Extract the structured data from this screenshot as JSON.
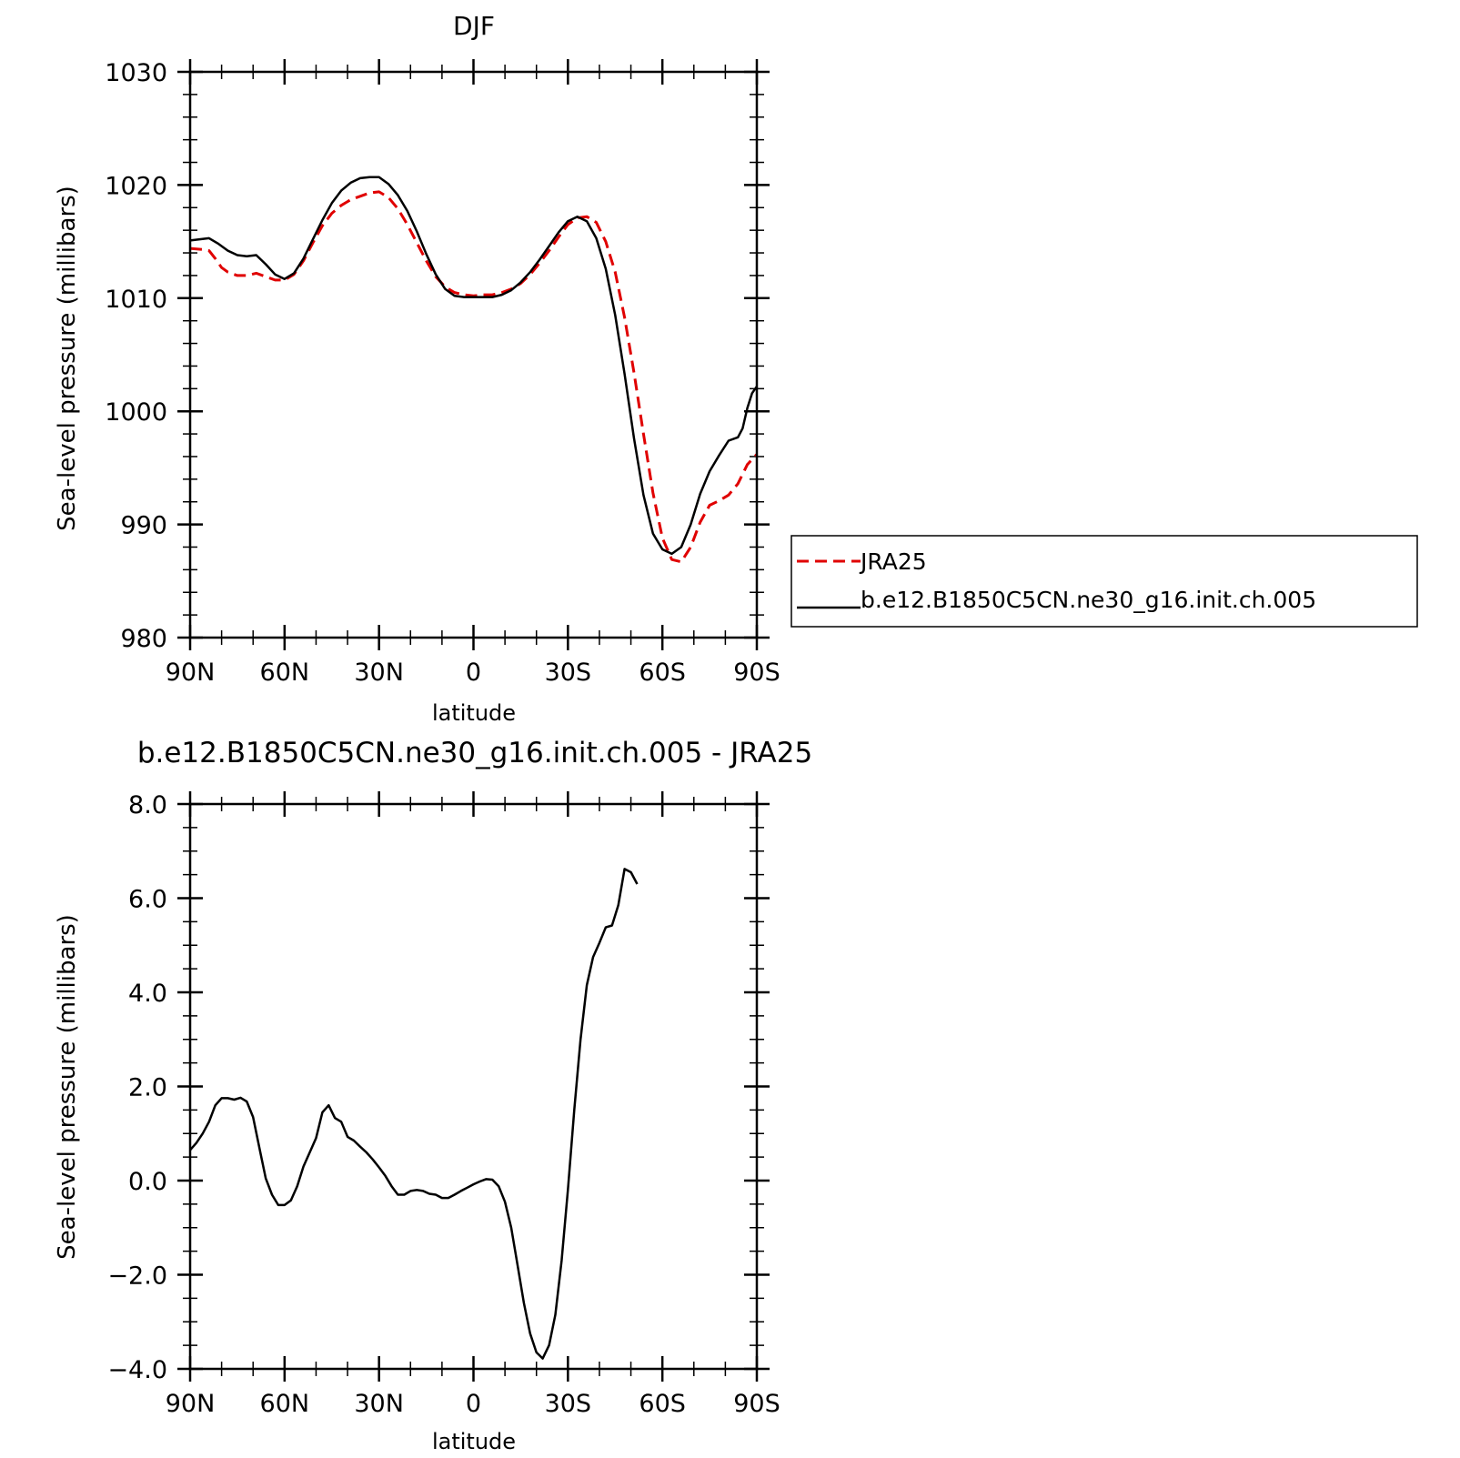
{
  "chart_data": [
    {
      "type": "line",
      "title": "DJF",
      "xlabel": "latitude",
      "ylabel": "Sea-level pressure (millibars)",
      "xlim": [
        90,
        -90
      ],
      "ylim": [
        980,
        1030
      ],
      "x_ticks": [
        90,
        60,
        30,
        0,
        -30,
        -60,
        -90
      ],
      "x_tick_labels": [
        "90N",
        "60N",
        "30N",
        "0",
        "30S",
        "60S",
        "90S"
      ],
      "y_ticks": [
        980,
        990,
        1000,
        1010,
        1020,
        1030
      ],
      "y_tick_labels": [
        "980",
        "990",
        "1000",
        "1010",
        "1020",
        "1030"
      ],
      "grid": false,
      "legend_position": "right",
      "series": [
        {
          "name": "JRA25",
          "color": "#e00000",
          "style": "dashed",
          "points": [
            [
              90,
              1014.4
            ],
            [
              86,
              1014.3
            ],
            [
              84,
              1014.2
            ],
            [
              82,
              1013.5
            ],
            [
              80,
              1012.7
            ],
            [
              78,
              1012.3
            ],
            [
              75,
              1012.0
            ],
            [
              72,
              1012.0
            ],
            [
              69,
              1012.2
            ],
            [
              66,
              1011.9
            ],
            [
              63,
              1011.6
            ],
            [
              60,
              1011.6
            ],
            [
              57,
              1012.1
            ],
            [
              54,
              1013.3
            ],
            [
              51,
              1014.9
            ],
            [
              48,
              1016.4
            ],
            [
              45,
              1017.5
            ],
            [
              42,
              1018.2
            ],
            [
              39,
              1018.7
            ],
            [
              36,
              1019.0
            ],
            [
              33,
              1019.3
            ],
            [
              30,
              1019.4
            ],
            [
              27,
              1018.9
            ],
            [
              24,
              1017.9
            ],
            [
              21,
              1016.5
            ],
            [
              18,
              1014.9
            ],
            [
              15,
              1013.3
            ],
            [
              12,
              1011.9
            ],
            [
              9,
              1011.0
            ],
            [
              6,
              1010.5
            ],
            [
              3,
              1010.3
            ],
            [
              0,
              1010.2
            ],
            [
              -3,
              1010.3
            ],
            [
              -6,
              1010.3
            ],
            [
              -9,
              1010.5
            ],
            [
              -12,
              1010.8
            ],
            [
              -15,
              1011.3
            ],
            [
              -18,
              1012.1
            ],
            [
              -21,
              1013.1
            ],
            [
              -24,
              1014.2
            ],
            [
              -27,
              1015.4
            ],
            [
              -30,
              1016.5
            ],
            [
              -33,
              1017.1
            ],
            [
              -36,
              1017.2
            ],
            [
              -39,
              1016.7
            ],
            [
              -42,
              1015.0
            ],
            [
              -45,
              1012.3
            ],
            [
              -48,
              1008.3
            ],
            [
              -51,
              1003.4
            ],
            [
              -54,
              998.0
            ],
            [
              -57,
              992.8
            ],
            [
              -60,
              988.8
            ],
            [
              -63,
              986.9
            ],
            [
              -66,
              986.7
            ],
            [
              -69,
              988.0
            ],
            [
              -72,
              990.2
            ],
            [
              -75,
              991.7
            ],
            [
              -78,
              992.1
            ],
            [
              -81,
              992.6
            ],
            [
              -84,
              993.6
            ],
            [
              -87,
              995.3
            ],
            [
              -90,
              996.2
            ]
          ]
        },
        {
          "name": "b.e12.B1850C5CN.ne30_g16.init.ch.005",
          "color": "#000000",
          "style": "solid",
          "points": [
            [
              90,
              1015.1
            ],
            [
              87,
              1015.2
            ],
            [
              84,
              1015.3
            ],
            [
              81,
              1014.8
            ],
            [
              78,
              1014.2
            ],
            [
              75,
              1013.8
            ],
            [
              72,
              1013.7
            ],
            [
              69,
              1013.8
            ],
            [
              66,
              1013.0
            ],
            [
              63,
              1012.1
            ],
            [
              60,
              1011.7
            ],
            [
              57,
              1012.2
            ],
            [
              54,
              1013.5
            ],
            [
              51,
              1015.2
            ],
            [
              48,
              1016.9
            ],
            [
              45,
              1018.4
            ],
            [
              42,
              1019.5
            ],
            [
              39,
              1020.2
            ],
            [
              36,
              1020.6
            ],
            [
              33,
              1020.7
            ],
            [
              30,
              1020.7
            ],
            [
              27,
              1020.1
            ],
            [
              24,
              1019.1
            ],
            [
              21,
              1017.7
            ],
            [
              18,
              1015.9
            ],
            [
              15,
              1013.9
            ],
            [
              12,
              1012.1
            ],
            [
              9,
              1010.8
            ],
            [
              6,
              1010.2
            ],
            [
              3,
              1010.1
            ],
            [
              0,
              1010.1
            ],
            [
              -3,
              1010.1
            ],
            [
              -6,
              1010.1
            ],
            [
              -9,
              1010.3
            ],
            [
              -12,
              1010.7
            ],
            [
              -15,
              1011.4
            ],
            [
              -18,
              1012.3
            ],
            [
              -21,
              1013.4
            ],
            [
              -24,
              1014.6
            ],
            [
              -27,
              1015.8
            ],
            [
              -30,
              1016.8
            ],
            [
              -33,
              1017.2
            ],
            [
              -36,
              1016.8
            ],
            [
              -39,
              1015.3
            ],
            [
              -42,
              1012.6
            ],
            [
              -45,
              1008.5
            ],
            [
              -48,
              1003.3
            ],
            [
              -51,
              997.6
            ],
            [
              -54,
              992.6
            ],
            [
              -57,
              989.2
            ],
            [
              -60,
              987.8
            ],
            [
              -63,
              987.4
            ],
            [
              -66,
              988.0
            ],
            [
              -69,
              990.0
            ],
            [
              -72,
              992.7
            ],
            [
              -75,
              994.7
            ],
            [
              -78,
              996.1
            ],
            [
              -81,
              997.4
            ],
            [
              -84,
              997.7
            ],
            [
              -85.5,
              998.5
            ],
            [
              -87,
              1000.3
            ],
            [
              -88.5,
              1001.6
            ],
            [
              -90,
              1002.2
            ]
          ]
        }
      ]
    },
    {
      "type": "line",
      "title": "b.e12.B1850C5CN.ne30_g16.init.ch.005 - JRA25",
      "xlabel": "latitude",
      "ylabel": "Sea-level pressure (millibars)",
      "xlim": [
        90,
        -90
      ],
      "ylim": [
        -4.0,
        8.0
      ],
      "x_ticks": [
        90,
        60,
        30,
        0,
        -30,
        -60,
        -90
      ],
      "x_tick_labels": [
        "90N",
        "60N",
        "30N",
        "0",
        "30S",
        "60S",
        "90S"
      ],
      "y_ticks": [
        -4,
        -2,
        0,
        2,
        4,
        6,
        8
      ],
      "y_tick_labels": [
        "-4.0",
        "-2.0",
        "0.0",
        "2.0",
        "4.0",
        "6.0",
        "8.0"
      ],
      "grid": false,
      "series": [
        {
          "color": "#000000",
          "style": "solid",
          "points": [
            [
              90,
              0.65
            ],
            [
              88,
              0.8
            ],
            [
              86,
              1.0
            ],
            [
              84,
              1.25
            ],
            [
              82,
              1.6
            ],
            [
              80,
              1.75
            ],
            [
              78,
              1.75
            ],
            [
              76,
              1.72
            ],
            [
              74,
              1.76
            ],
            [
              72,
              1.68
            ],
            [
              70,
              1.35
            ],
            [
              68,
              0.7
            ],
            [
              66,
              0.05
            ],
            [
              64,
              -0.3
            ],
            [
              62,
              -0.52
            ],
            [
              60,
              -0.52
            ],
            [
              58,
              -0.42
            ],
            [
              56,
              -0.12
            ],
            [
              54,
              0.3
            ],
            [
              52,
              0.6
            ],
            [
              50,
              0.9
            ],
            [
              48,
              1.45
            ],
            [
              46,
              1.6
            ],
            [
              44,
              1.33
            ],
            [
              42,
              1.25
            ],
            [
              40,
              0.93
            ],
            [
              38,
              0.85
            ],
            [
              36,
              0.72
            ],
            [
              34,
              0.6
            ],
            [
              32,
              0.45
            ],
            [
              30,
              0.28
            ],
            [
              28,
              0.1
            ],
            [
              26,
              -0.12
            ],
            [
              24,
              -0.3
            ],
            [
              22,
              -0.3
            ],
            [
              20,
              -0.22
            ],
            [
              18,
              -0.2
            ],
            [
              16,
              -0.22
            ],
            [
              14,
              -0.28
            ],
            [
              12,
              -0.3
            ],
            [
              10,
              -0.37
            ],
            [
              8,
              -0.37
            ],
            [
              6,
              -0.3
            ],
            [
              4,
              -0.22
            ],
            [
              2,
              -0.15
            ],
            [
              0,
              -0.08
            ],
            [
              -2,
              -0.02
            ],
            [
              -4,
              0.03
            ],
            [
              -6,
              0.02
            ],
            [
              -8,
              -0.12
            ],
            [
              -10,
              -0.45
            ],
            [
              -12,
              -1.0
            ],
            [
              -14,
              -1.8
            ],
            [
              -16,
              -2.6
            ],
            [
              -18,
              -3.25
            ],
            [
              -20,
              -3.65
            ],
            [
              -22,
              -3.78
            ],
            [
              -24,
              -3.5
            ],
            [
              -26,
              -2.85
            ],
            [
              -28,
              -1.7
            ],
            [
              -30,
              -0.2
            ],
            [
              -32,
              1.5
            ],
            [
              -34,
              3.0
            ],
            [
              -36,
              4.15
            ],
            [
              -38,
              4.75
            ],
            [
              -40,
              5.05
            ],
            [
              -42,
              5.38
            ],
            [
              -44,
              5.42
            ],
            [
              -46,
              5.85
            ],
            [
              -48,
              6.62
            ],
            [
              -50,
              6.55
            ],
            [
              -52,
              6.3
            ]
          ]
        }
      ]
    }
  ]
}
